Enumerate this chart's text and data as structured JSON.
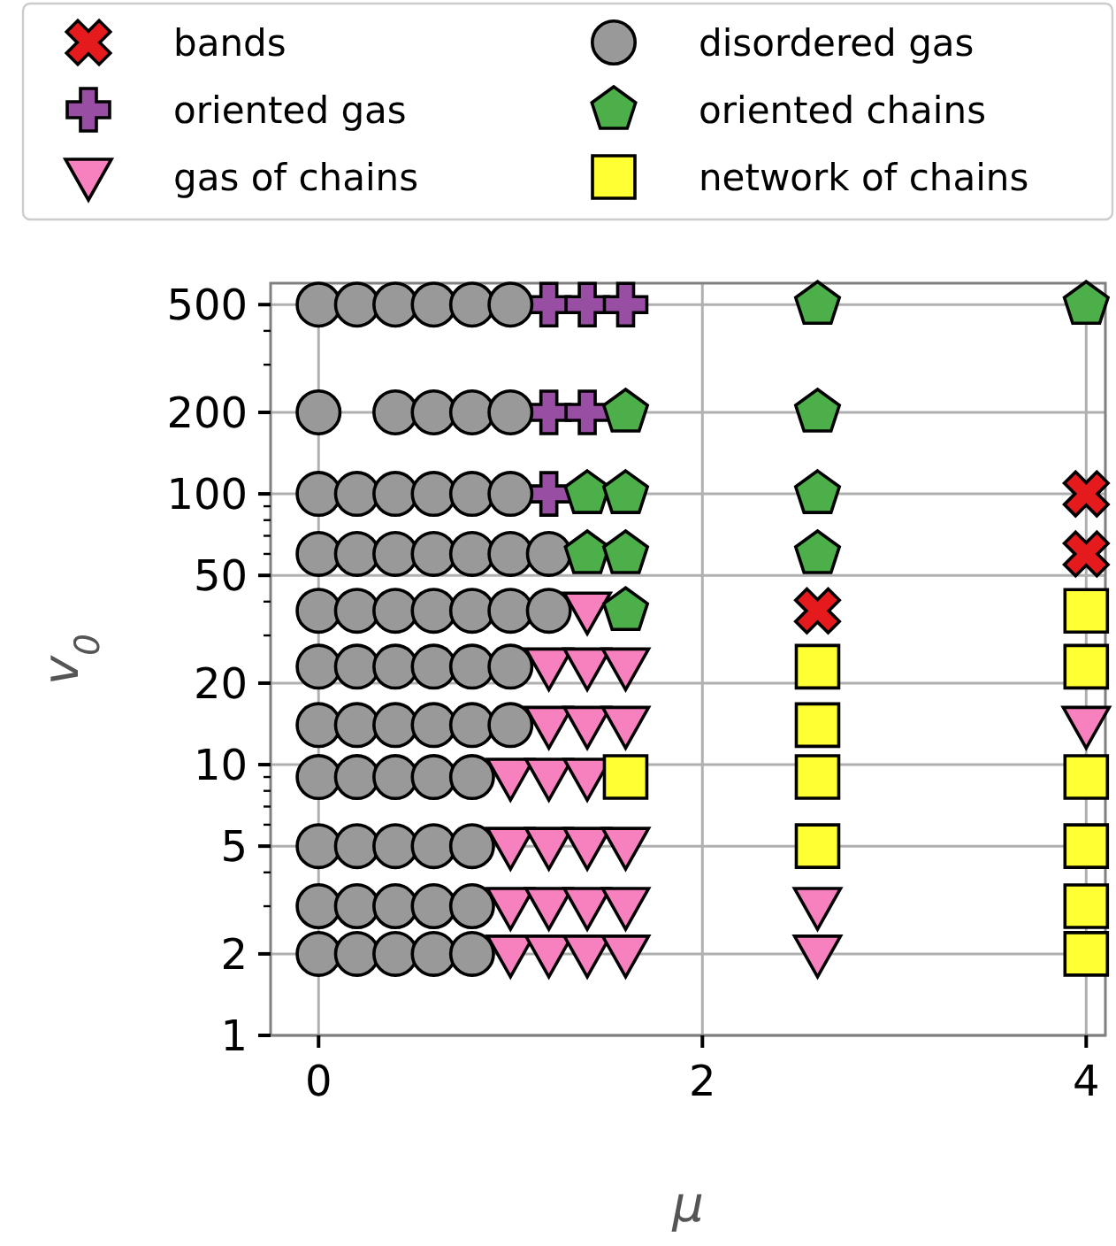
{
  "chart_data": {
    "type": "scatter",
    "xlabel": "μ",
    "ylabel": "v$_{0}$",
    "log": "y",
    "grid": true,
    "legend": "top",
    "xlim": [
      -0.25,
      4.1
    ],
    "xticks": [
      0,
      2,
      4
    ],
    "ylim": [
      1,
      600
    ],
    "yticks": [
      1,
      2,
      {
        "value": 3,
        "label": null
      },
      {
        "value": 4,
        "label": null
      },
      5,
      {
        "value": 6,
        "label": null
      },
      {
        "value": 7,
        "label": null
      },
      {
        "value": 8,
        "label": null
      },
      {
        "value": 9,
        "label": null
      },
      10,
      20,
      {
        "value": 30,
        "label": null
      },
      {
        "value": 40,
        "label": null
      },
      50,
      {
        "value": 60,
        "label": null
      },
      {
        "value": 70,
        "label": null
      },
      {
        "value": 80,
        "label": null
      },
      {
        "value": 90,
        "label": null
      },
      100,
      200,
      {
        "value": 300,
        "label": null
      },
      {
        "value": 400,
        "label": null
      },
      500
    ],
    "series": [
      {
        "name": "bands",
        "color": "#e41a1c",
        "marker": "x",
        "x": [
          2.6,
          4,
          4
        ],
        "values": [
          37,
          100,
          60
        ]
      },
      {
        "name": "oriented gas",
        "color": "#984ea3",
        "marker": "plus",
        "x": [
          1.2,
          1.4,
          1.6,
          1.2,
          1.4,
          1.2
        ],
        "values": [
          500,
          500,
          500,
          200,
          200,
          100
        ]
      },
      {
        "name": "gas of chains",
        "color": "#f781bf",
        "marker": "triangle-down",
        "x": [
          1.4,
          1.2,
          1.4,
          1.6,
          1.2,
          1.4,
          1.6,
          1.0,
          1.2,
          1.4,
          1.0,
          1.2,
          1.4,
          1.6,
          1.0,
          1.2,
          1.4,
          1.6,
          1.0,
          1.2,
          1.4,
          1.6,
          2.6,
          2.6,
          4
        ],
        "values": [
          37,
          23,
          23,
          23,
          14,
          14,
          14,
          9,
          9,
          9,
          5,
          5,
          5,
          5,
          3,
          3,
          3,
          3,
          2,
          2,
          2,
          2,
          3,
          2,
          14
        ]
      },
      {
        "name": "disordered gas",
        "color": "#999999",
        "marker": "circle",
        "x": [
          0,
          0.2,
          0.4,
          0.6,
          0.8,
          1.0,
          0,
          0.4,
          0.6,
          0.8,
          1.0,
          0,
          0.2,
          0.4,
          0.6,
          0.8,
          1.0,
          0,
          0.2,
          0.4,
          0.6,
          0.8,
          1.0,
          1.2,
          0,
          0.2,
          0.4,
          0.6,
          0.8,
          1.0,
          1.2,
          0,
          0.2,
          0.4,
          0.6,
          0.8,
          1.0,
          0,
          0.2,
          0.4,
          0.6,
          0.8,
          1.0,
          0,
          0.2,
          0.4,
          0.6,
          0.8,
          0,
          0.2,
          0.4,
          0.6,
          0.8,
          0,
          0.2,
          0.4,
          0.6,
          0.8,
          0,
          0.2,
          0.4,
          0.6,
          0.8
        ],
        "values": [
          500,
          500,
          500,
          500,
          500,
          500,
          200,
          200,
          200,
          200,
          200,
          100,
          100,
          100,
          100,
          100,
          100,
          60,
          60,
          60,
          60,
          60,
          60,
          60,
          37,
          37,
          37,
          37,
          37,
          37,
          37,
          23,
          23,
          23,
          23,
          23,
          23,
          14,
          14,
          14,
          14,
          14,
          14,
          9,
          9,
          9,
          9,
          9,
          5,
          5,
          5,
          5,
          5,
          3,
          3,
          3,
          3,
          3,
          2,
          2,
          2,
          2,
          2
        ]
      },
      {
        "name": "oriented chains",
        "color": "#4daf4a",
        "x": [
          2.6,
          4,
          1.6,
          2.6,
          1.4,
          1.6,
          2.6,
          1.4,
          1.6,
          2.6,
          1.6
        ],
        "values": [
          500,
          500,
          200,
          200,
          100,
          100,
          100,
          60,
          60,
          60,
          37
        ]
      },
      {
        "name": "network of chains",
        "color": "#ffff33",
        "marker": "square",
        "x": [
          1.6,
          2.6,
          2.6,
          2.6,
          2.6,
          4,
          4,
          4,
          4,
          4,
          4
        ],
        "values": [
          9,
          23,
          14,
          9,
          5,
          37,
          23,
          9,
          5,
          3,
          2
        ]
      }
    ]
  }
}
